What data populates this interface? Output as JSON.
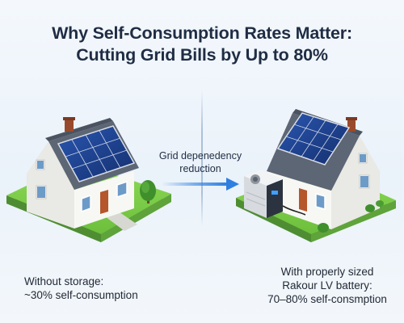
{
  "title": {
    "line1": "Why Self-Consumption Rates Matter:",
    "line2": "Cutting Grid Bills by Up to 80%"
  },
  "arrow": {
    "line1": "Grid depenedency",
    "line2": "reduction"
  },
  "left": {
    "line1": "Without storage:",
    "line2": "~30% self-consumption"
  },
  "right": {
    "line1": "With properly sized",
    "line2": "Rakour LV battery:",
    "line3": "70–80% self-consmption"
  },
  "colors": {
    "title": "#1f2d44",
    "arrow": "#2f7fe0",
    "panel": "#1e3f8a",
    "wall": "#f2f2ef",
    "roof": "#5d6675",
    "lawn": "#7ccf4a",
    "door": "#b5562b"
  },
  "icons": [
    "house-left-icon",
    "house-right-icon",
    "solar-panel-icon",
    "battery-unit-icon",
    "tree-icon",
    "arrow-right-icon"
  ]
}
